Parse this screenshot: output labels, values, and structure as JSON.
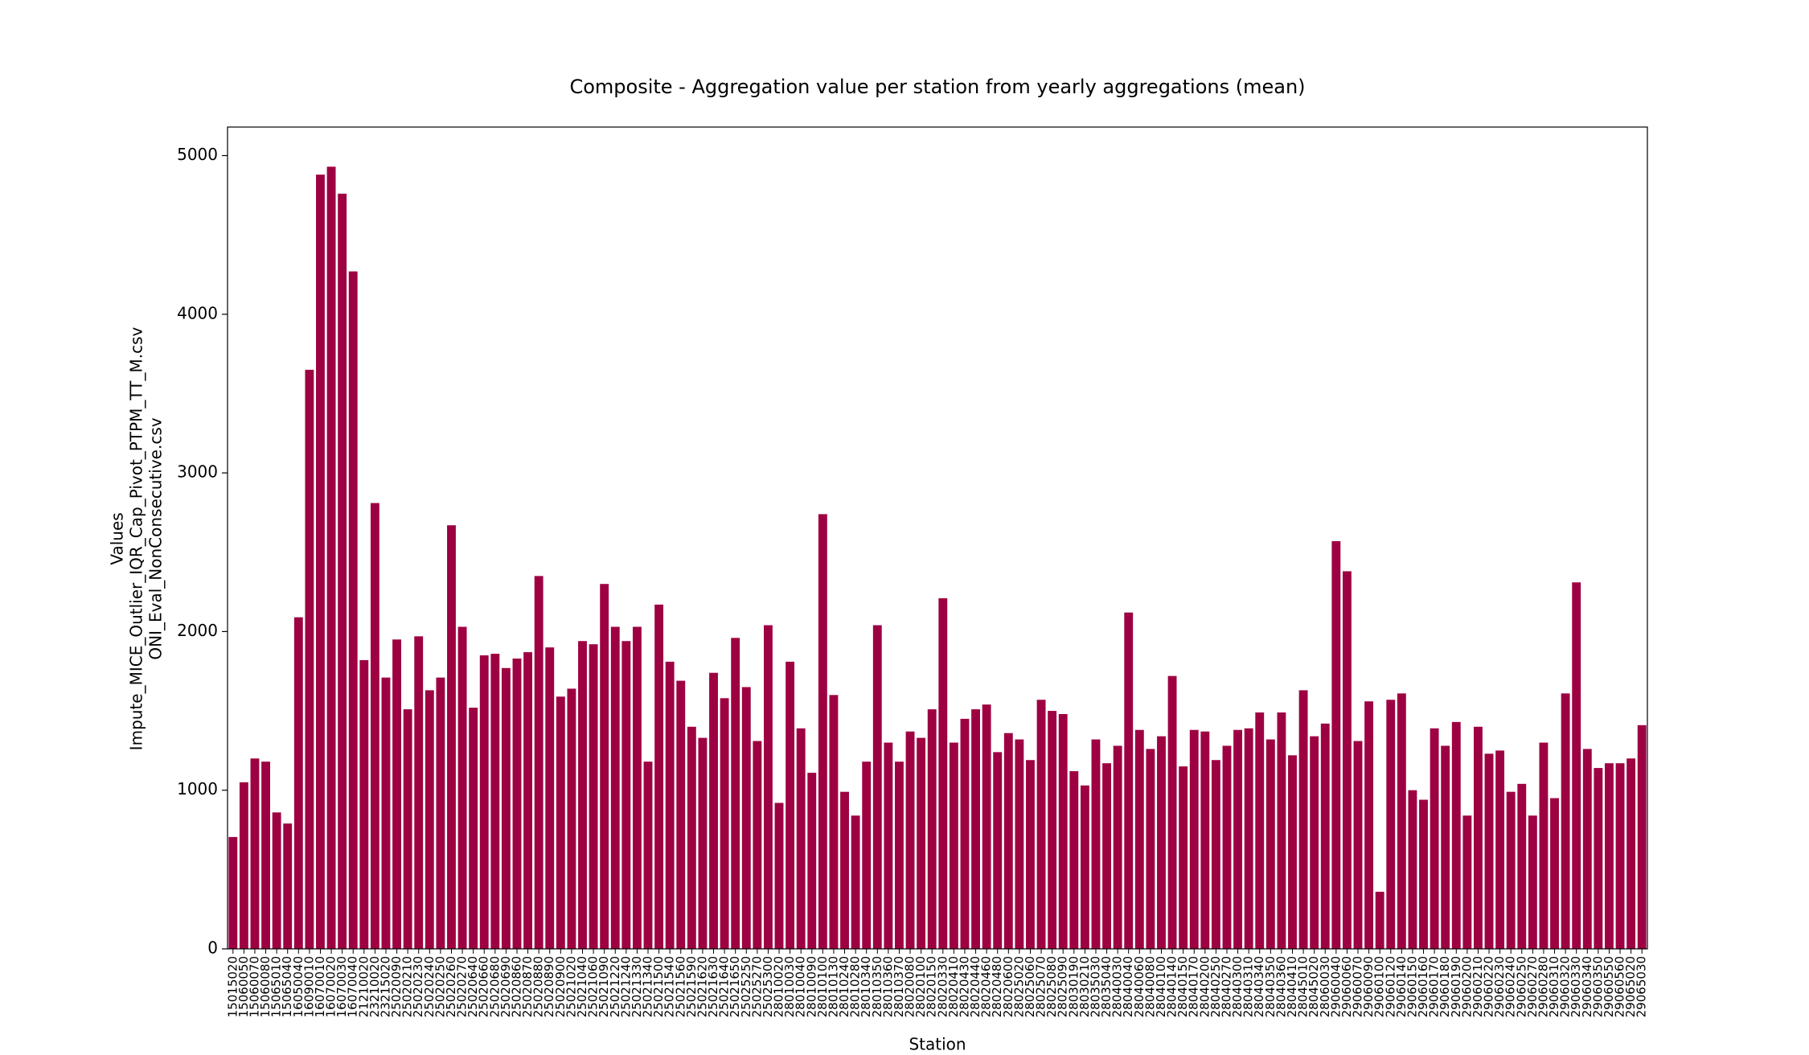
{
  "chart_data": {
    "type": "bar",
    "title": "Composite - Aggregation value per station from yearly aggregations (mean)",
    "x_label": "Station",
    "y_label": [
      "Values",
      "Impute_MICE_Outlier_IQR_Cap_Pivot_PTPM_TT_M.csv",
      "ONI_Eval_NonConsecutive.csv"
    ],
    "color": "#9e0142",
    "ylim": [
      0,
      5180
    ],
    "yticks": [
      0,
      1000,
      2000,
      3000,
      4000,
      5000
    ],
    "categories": [
      "15015020",
      "15060050",
      "15060070",
      "15060080",
      "15065010",
      "15065040",
      "16050040",
      "16090010",
      "16070010",
      "16070020",
      "16070030",
      "16070040",
      "21210020",
      "23210020",
      "23215020",
      "25020090",
      "25020210",
      "25020230",
      "25020240",
      "25020250",
      "25020260",
      "25020270",
      "25020640",
      "25020660",
      "25020680",
      "25020690",
      "25020860",
      "25020870",
      "25020880",
      "25020890",
      "25020900",
      "25021020",
      "25021040",
      "25021060",
      "25021090",
      "25021220",
      "25021240",
      "25021330",
      "25021340",
      "25021500",
      "25021540",
      "25021560",
      "25021590",
      "25021620",
      "25021630",
      "25021640",
      "25021650",
      "25025250",
      "25025270",
      "25025300",
      "28010020",
      "28010030",
      "28010040",
      "28010090",
      "28010100",
      "28010130",
      "28010240",
      "28010280",
      "28010340",
      "28010350",
      "28010360",
      "28010370",
      "28020080",
      "28020100",
      "28020150",
      "28020330",
      "28020410",
      "28020430",
      "28020440",
      "28020460",
      "28020480",
      "28020600",
      "28025020",
      "28025060",
      "28025070",
      "28025080",
      "28025090",
      "28030190",
      "28030210",
      "28035030",
      "28035040",
      "28040030",
      "28040040",
      "28040060",
      "28040080",
      "28040100",
      "28040140",
      "28040150",
      "28040170",
      "28040200",
      "28040250",
      "28040270",
      "28040300",
      "28040310",
      "28040340",
      "28040350",
      "28040360",
      "28040410",
      "28045010",
      "28045020",
      "28060030",
      "29060040",
      "29060060",
      "29060070",
      "29060090",
      "29060100",
      "29060120",
      "29060140",
      "29060150",
      "29060160",
      "29060170",
      "29060180",
      "29060190",
      "29060200",
      "29060210",
      "29060220",
      "29060230",
      "29060240",
      "29060250",
      "29060270",
      "29060280",
      "29060310",
      "29060320",
      "29060330",
      "29060340",
      "29060350",
      "29060550",
      "29060560",
      "29065020",
      "29065030"
    ],
    "values": [
      705,
      1050,
      1200,
      1180,
      860,
      790,
      2090,
      3650,
      4880,
      4930,
      4760,
      4270,
      1820,
      2810,
      1710,
      1950,
      1510,
      1970,
      1630,
      1710,
      2670,
      2030,
      1520,
      1850,
      1860,
      1770,
      1830,
      1870,
      2350,
      1900,
      1590,
      1640,
      1940,
      1920,
      2300,
      2030,
      1940,
      2030,
      1180,
      2170,
      1810,
      1690,
      1400,
      1330,
      1740,
      1580,
      1960,
      1650,
      1310,
      2040,
      920,
      1810,
      1390,
      1110,
      2740,
      1600,
      990,
      840,
      1180,
      2040,
      1300,
      1180,
      1370,
      1330,
      1510,
      2210,
      1300,
      1450,
      1510,
      1540,
      1240,
      1360,
      1320,
      1190,
      1570,
      1500,
      1480,
      1120,
      1030,
      1320,
      1170,
      1280,
      2120,
      1380,
      1260,
      1340,
      1720,
      1150,
      1380,
      1370,
      1190,
      1280,
      1380,
      1390,
      1490,
      1320,
      1490,
      1220,
      1630,
      1340,
      1420,
      2570,
      2380,
      1310,
      1560,
      360,
      1570,
      1610,
      1000,
      940,
      1390,
      1280,
      1430,
      840,
      1400,
      1230,
      1250,
      990,
      1040,
      840,
      1300,
      950,
      1610,
      2310,
      1260,
      1140,
      1170,
      1170,
      1200,
      1410
    ]
  }
}
